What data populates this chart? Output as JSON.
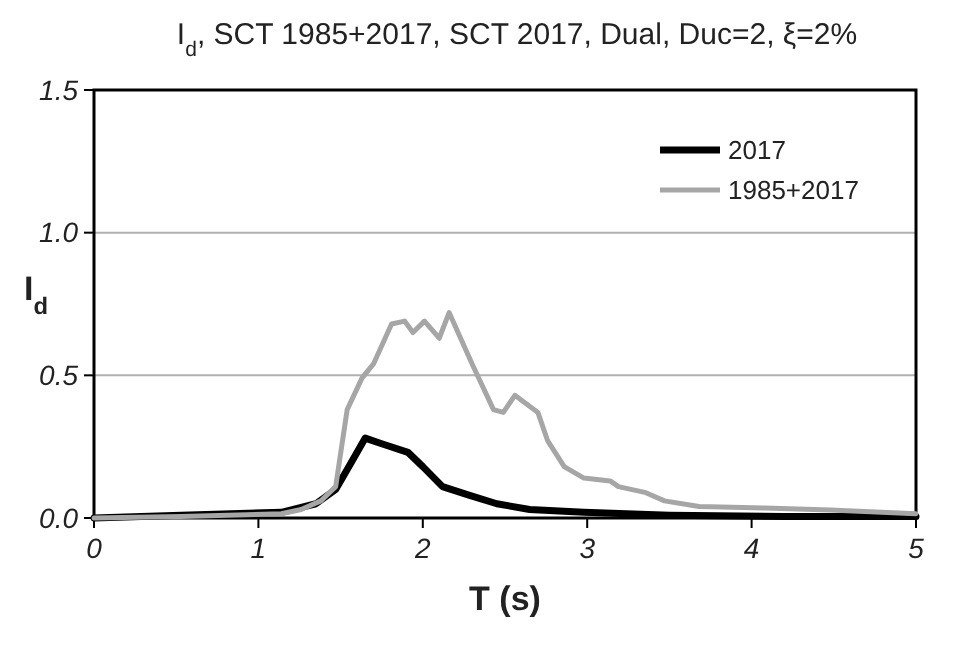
{
  "chart_data": {
    "type": "line",
    "title": "I$_{d}$, SCT 1985+2017, SCT 2017, Dual, Duc=2, ξ=2%",
    "xlabel": "T (s)",
    "ylabel": "I$_{d}$",
    "xlim": [
      0,
      5
    ],
    "xticks": [
      0,
      1,
      2,
      3,
      4,
      5
    ],
    "ylim": [
      0,
      1.5
    ],
    "yticks": [
      {
        "value": 0,
        "label": "0.0"
      },
      {
        "value": 0.5,
        "label": "0.5"
      },
      {
        "value": 1,
        "label": "1.0"
      },
      {
        "value": 1.5,
        "label": "1.5"
      }
    ],
    "grid": "y",
    "legend": "top right",
    "marker": "none",
    "line_style": "solid",
    "series": [
      {
        "name": "2017",
        "color": "#000000",
        "x": [
          0,
          0.53,
          1.14,
          1.35,
          1.47,
          1.57,
          1.65,
          1.75,
          1.91,
          2.0,
          2.12,
          2.28,
          2.45,
          2.65,
          2.98,
          3.5,
          4.2,
          5
        ],
        "values": [
          0,
          0.01,
          0.02,
          0.05,
          0.1,
          0.2,
          0.28,
          0.26,
          0.23,
          0.18,
          0.11,
          0.08,
          0.05,
          0.03,
          0.02,
          0.01,
          0.005,
          0.005
        ]
      },
      {
        "name": "1985+2017",
        "color": "#a6a6a6",
        "x": [
          0,
          0.53,
          1.14,
          1.26,
          1.38,
          1.47,
          1.54,
          1.63,
          1.7,
          1.81,
          1.89,
          1.94,
          2.01,
          2.1,
          2.16,
          2.3,
          2.43,
          2.49,
          2.56,
          2.7,
          2.76,
          2.86,
          2.98,
          3.14,
          3.19,
          3.35,
          3.47,
          3.68,
          4.08,
          4.48,
          5
        ],
        "values": [
          0,
          0.005,
          0.015,
          0.03,
          0.06,
          0.11,
          0.38,
          0.49,
          0.54,
          0.68,
          0.69,
          0.65,
          0.69,
          0.63,
          0.72,
          0.54,
          0.38,
          0.37,
          0.43,
          0.37,
          0.27,
          0.18,
          0.14,
          0.13,
          0.11,
          0.09,
          0.06,
          0.04,
          0.035,
          0.028,
          0.015
        ]
      }
    ]
  }
}
